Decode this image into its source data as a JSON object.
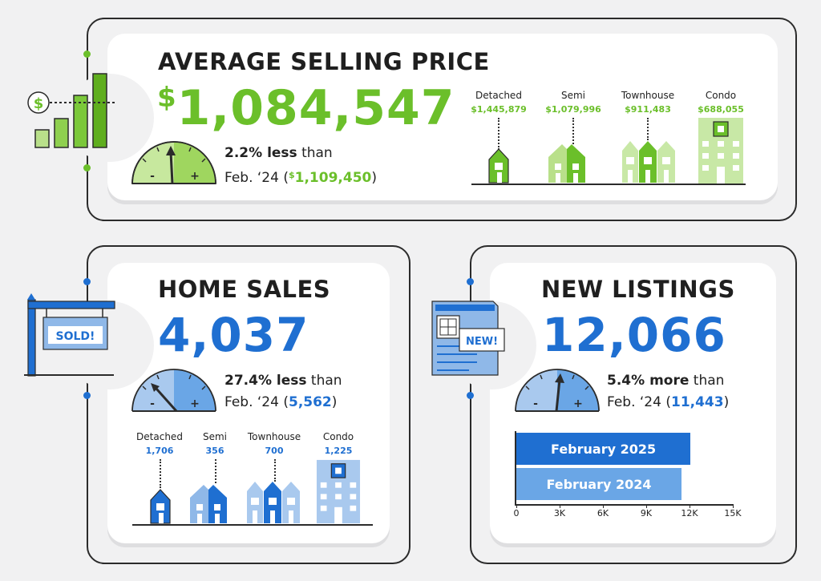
{
  "colors": {
    "green": "#6bbf2a",
    "green_light": "#b9e08a",
    "blue": "#1f6fd1",
    "blue_light": "#8fb8e8",
    "dark": "#222222"
  },
  "avg_price": {
    "title": "AVERAGE SELLING PRICE",
    "dollar": "$",
    "value": "1,084,547",
    "change_bold": "2.2% less",
    "change_rest": " than",
    "prev_label": "Feb. ‘24 (",
    "prev_dollar": "$",
    "prev_value": "1,109,450",
    "prev_close": ")",
    "icon_dollar": "$",
    "types": [
      {
        "label": "Detached",
        "value": "$1,445,879"
      },
      {
        "label": "Semi",
        "value": "$1,079,996"
      },
      {
        "label": "Townhouse",
        "value": "$911,483"
      },
      {
        "label": "Condo",
        "value": "$688,055"
      }
    ]
  },
  "home_sales": {
    "title": "HOME SALES",
    "value": "4,037",
    "change_bold": "27.4% less",
    "change_rest": " than",
    "prev_label": "Feb. ‘24 (",
    "prev_value": "5,562",
    "prev_close": ")",
    "sign_text": "SOLD!",
    "types": [
      {
        "label": "Detached",
        "value": "1,706"
      },
      {
        "label": "Semi",
        "value": "356"
      },
      {
        "label": "Townhouse",
        "value": "700"
      },
      {
        "label": "Condo",
        "value": "1,225"
      }
    ]
  },
  "new_listings": {
    "title": "NEW LISTINGS",
    "value": "12,066",
    "change_bold": "5.4% more",
    "change_rest": " than",
    "prev_label": "Feb. ‘24 (",
    "prev_value": "11,443",
    "prev_close": ")",
    "badge": "NEW!"
  },
  "gauge": {
    "minus": "-",
    "plus": "+"
  },
  "chart_data": {
    "type": "bar",
    "orientation": "horizontal",
    "categories": [
      "February 2025",
      "February 2024"
    ],
    "values": [
      12066,
      11443
    ],
    "xlim": [
      0,
      15000
    ],
    "tick_values": [
      0,
      3000,
      6000,
      9000,
      12000,
      15000
    ],
    "tick_labels": [
      "0",
      "3K",
      "6K",
      "9K",
      "12K",
      "15K"
    ],
    "colors": [
      "#1f6fd1",
      "#6aa6e6"
    ]
  }
}
